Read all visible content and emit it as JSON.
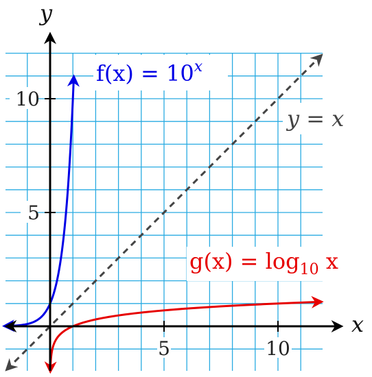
{
  "chart_data": {
    "type": "line",
    "xlabel": "x",
    "ylabel": "y",
    "xlim": [
      -2,
      12
    ],
    "ylim": [
      -2,
      12
    ],
    "x_ticks": [
      5,
      10
    ],
    "y_ticks": [
      5,
      10
    ],
    "grid": true,
    "colors": {
      "grid": "#29abe2",
      "f": "#0000e6",
      "g": "#e60000",
      "identity": "#444444",
      "axes": "#000000"
    },
    "series": [
      {
        "name": "f(x) = 10^x",
        "label_main": "f(x) = 10",
        "label_sup": "x",
        "function": "exp10",
        "x": [
          -2,
          -1.5,
          -1,
          -0.5,
          0,
          0.25,
          0.5,
          0.75,
          1.0,
          1.04
        ],
        "y": [
          0.01,
          0.0316,
          0.1,
          0.316,
          1,
          1.778,
          3.162,
          5.623,
          10,
          11
        ]
      },
      {
        "name": "g(x) = log10 x",
        "label_main": "g(x) = log",
        "label_sub": "10",
        "label_tail": " x",
        "function": "log10",
        "x": [
          0.01,
          0.05,
          0.1,
          0.5,
          1,
          2,
          4,
          6,
          8,
          10,
          12
        ],
        "y": [
          -2,
          -1.301,
          -1,
          -0.301,
          0,
          0.301,
          0.602,
          0.778,
          0.903,
          1,
          1.079
        ]
      },
      {
        "name": "y = x",
        "label": "y = x",
        "function": "identity",
        "x": [
          -2,
          12
        ],
        "y": [
          -2,
          12
        ]
      }
    ]
  }
}
